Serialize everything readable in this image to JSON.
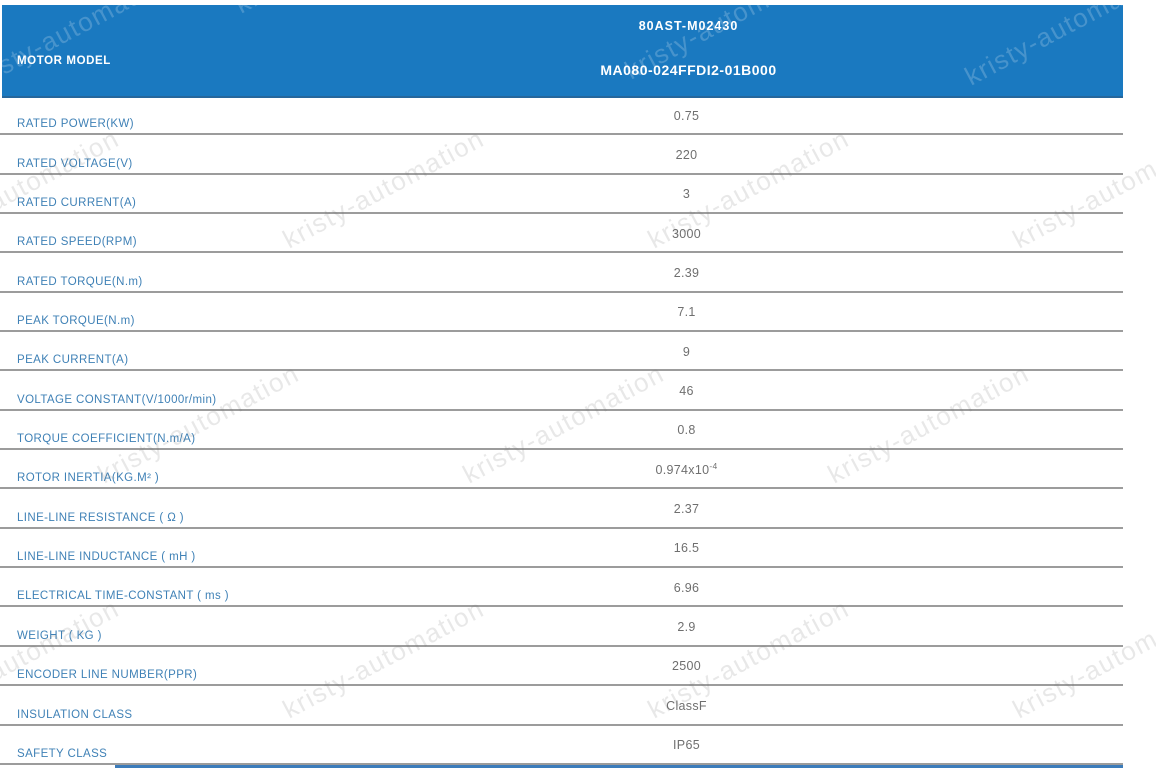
{
  "watermark": {
    "text": "kristy-automation"
  },
  "header": {
    "row_label": "MOTOR MODEL",
    "model_line1": "80AST-M02430",
    "model_line2": "MA080-024FFDI2-01B000"
  },
  "table": {
    "rows": [
      {
        "label": "RATED POWER(KW)",
        "value": "0.75"
      },
      {
        "label": "RATED VOLTAGE(V)",
        "value": "220"
      },
      {
        "label": "RATED CURRENT(A)",
        "value": "3"
      },
      {
        "label": "RATED SPEED(RPM)",
        "value": "3000"
      },
      {
        "label": "RATED TORQUE(N.m)",
        "value": "2.39"
      },
      {
        "label": "PEAK TORQUE(N.m)",
        "value": "7.1"
      },
      {
        "label": "PEAK CURRENT(A)",
        "value": "9"
      },
      {
        "label": "VOLTAGE CONSTANT(V/1000r/min)",
        "value": "46"
      },
      {
        "label": "TORQUE COEFFICIENT(N.m/A)",
        "value": "0.8"
      },
      {
        "label": "ROTOR INERTIA(KG.M² )",
        "value": "0.974x10",
        "value_sup": "-4"
      },
      {
        "label": "LINE-LINE RESISTANCE ( Ω )",
        "value": "2.37"
      },
      {
        "label": "LINE-LINE INDUCTANCE ( mH )",
        "value": "16.5"
      },
      {
        "label": "ELECTRICAL TIME-CONSTANT ( ms )",
        "value": "6.96"
      },
      {
        "label": "WEIGHT ( KG )",
        "value": "2.9"
      },
      {
        "label": "ENCODER LINE NUMBER(PPR)",
        "value": "2500"
      },
      {
        "label": "INSULATION CLASS",
        "value": "ClassF"
      },
      {
        "label": "SAFETY CLASS",
        "value": "IP65"
      }
    ]
  },
  "colors": {
    "header_bg": "#1a79c0",
    "header_border": "#26679c",
    "label_text": "#3f81b6",
    "value_text": "#6f6f6f",
    "separator": "#9c9c9c",
    "bottom_accent": "#3c7cba"
  }
}
